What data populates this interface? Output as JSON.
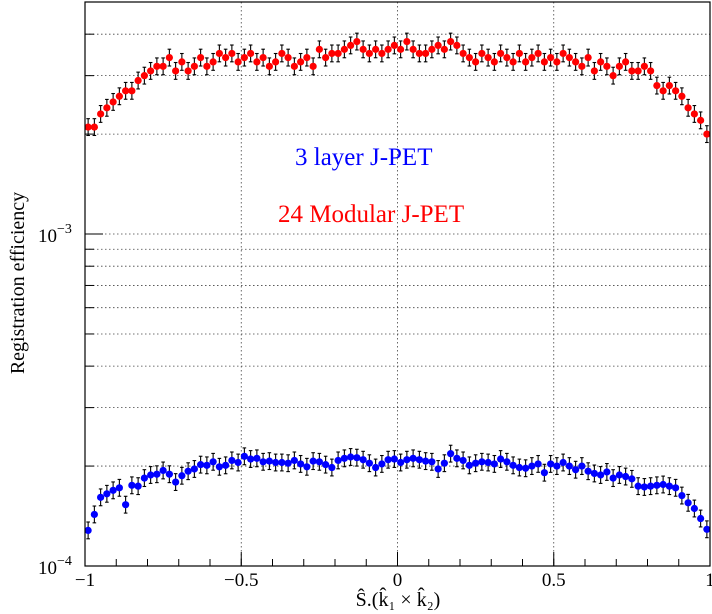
{
  "chart_data": {
    "type": "scatter",
    "title": "",
    "xlabel": "Ŝ.(k̂₁ × k̂₂)",
    "ylabel": "Registration efficiency",
    "xlim": [
      -1,
      1
    ],
    "ylim": [
      0.0001,
      0.005
    ],
    "log_y": true,
    "grid": true,
    "x_ticks": [
      {
        "value": -1,
        "label": "−1"
      },
      {
        "value": -0.5,
        "label": "−0.5"
      },
      {
        "value": 0,
        "label": "0"
      },
      {
        "value": 0.5,
        "label": "0.5"
      },
      {
        "value": 1,
        "label": "1"
      }
    ],
    "y_ticks": [
      {
        "value": 0.0001,
        "base": "10",
        "exp": "−4"
      },
      {
        "value": 0.001,
        "base": "10",
        "exp": "−3"
      }
    ],
    "annotations": [
      {
        "text": "3 layer J-PET",
        "color": "#0000ff"
      },
      {
        "text": "24 Modular J-PET",
        "color": "#ff0000"
      }
    ],
    "x": [
      -0.99,
      -0.97,
      -0.95,
      -0.93,
      -0.91,
      -0.89,
      -0.87,
      -0.85,
      -0.83,
      -0.81,
      -0.79,
      -0.77,
      -0.75,
      -0.73,
      -0.71,
      -0.69,
      -0.67,
      -0.65,
      -0.63,
      -0.61,
      -0.59,
      -0.57,
      -0.55,
      -0.53,
      -0.51,
      -0.49,
      -0.47,
      -0.45,
      -0.43,
      -0.41,
      -0.39,
      -0.37,
      -0.35,
      -0.33,
      -0.31,
      -0.29,
      -0.27,
      -0.25,
      -0.23,
      -0.21,
      -0.19,
      -0.17,
      -0.15,
      -0.13,
      -0.11,
      -0.09,
      -0.07,
      -0.05,
      -0.03,
      -0.01,
      0.01,
      0.03,
      0.05,
      0.07,
      0.09,
      0.11,
      0.13,
      0.15,
      0.17,
      0.19,
      0.21,
      0.23,
      0.25,
      0.27,
      0.29,
      0.31,
      0.33,
      0.35,
      0.37,
      0.39,
      0.41,
      0.43,
      0.45,
      0.47,
      0.49,
      0.51,
      0.53,
      0.55,
      0.57,
      0.59,
      0.61,
      0.63,
      0.65,
      0.67,
      0.69,
      0.71,
      0.73,
      0.75,
      0.77,
      0.79,
      0.81,
      0.83,
      0.85,
      0.87,
      0.89,
      0.91,
      0.93,
      0.95,
      0.97,
      0.99
    ],
    "series": [
      {
        "color": "#ff0000",
        "values": [
          0.0021,
          0.0021,
          0.0023,
          0.0024,
          0.0025,
          0.0026,
          0.0027,
          0.0027,
          0.0029,
          0.003,
          0.0031,
          0.0032,
          0.0032,
          0.0034,
          0.0031,
          0.0033,
          0.0031,
          0.0032,
          0.0034,
          0.0032,
          0.0033,
          0.0035,
          0.0034,
          0.0035,
          0.0033,
          0.0034,
          0.0035,
          0.0033,
          0.0034,
          0.0032,
          0.0033,
          0.0035,
          0.0034,
          0.0032,
          0.0033,
          0.0034,
          0.0032,
          0.0036,
          0.0034,
          0.0035,
          0.0035,
          0.0036,
          0.0037,
          0.0038,
          0.0036,
          0.0035,
          0.0036,
          0.0035,
          0.0036,
          0.0037,
          0.0036,
          0.0038,
          0.0036,
          0.0035,
          0.0035,
          0.0036,
          0.0037,
          0.0036,
          0.0038,
          0.0037,
          0.0035,
          0.0034,
          0.0033,
          0.0035,
          0.0034,
          0.0033,
          0.0035,
          0.0034,
          0.0033,
          0.0035,
          0.0033,
          0.0034,
          0.0035,
          0.0033,
          0.0034,
          0.0033,
          0.0035,
          0.0034,
          0.0033,
          0.0032,
          0.0034,
          0.0031,
          0.0033,
          0.0032,
          0.003,
          0.0032,
          0.0033,
          0.0031,
          0.0031,
          0.0032,
          0.0031,
          0.0028,
          0.0027,
          0.0028,
          0.0027,
          0.0026,
          0.0024,
          0.0023,
          0.0022,
          0.002
        ]
      },
      {
        "color": "#0000ff",
        "values": [
          0.000128,
          0.000143,
          0.000161,
          0.000165,
          0.000169,
          0.000172,
          0.000153,
          0.000175,
          0.000174,
          0.000184,
          0.000188,
          0.000189,
          0.000194,
          0.000189,
          0.000179,
          0.000187,
          0.000193,
          0.000196,
          0.000202,
          0.000201,
          0.000206,
          0.000199,
          0.000201,
          0.000208,
          0.000205,
          0.000214,
          0.00021,
          0.000211,
          0.000206,
          0.000207,
          0.000205,
          0.000205,
          0.000204,
          0.000208,
          0.000203,
          0.000199,
          0.000207,
          0.000206,
          0.000202,
          0.000198,
          0.000208,
          0.000211,
          0.000213,
          0.000212,
          0.000209,
          0.000204,
          0.000198,
          0.000203,
          0.000209,
          0.00021,
          0.000205,
          0.000209,
          0.000211,
          0.000209,
          0.000207,
          0.000206,
          0.000196,
          0.000204,
          0.000218,
          0.000211,
          0.000208,
          0.000201,
          0.000204,
          0.000206,
          0.000205,
          0.000203,
          0.00021,
          0.000206,
          0.000201,
          0.000198,
          0.000197,
          0.0002,
          0.000203,
          0.000191,
          0.000203,
          0.0002,
          0.000205,
          0.0002,
          0.000195,
          0.0002,
          0.000193,
          0.00019,
          0.000188,
          0.000192,
          0.000184,
          0.000188,
          0.000186,
          0.000183,
          0.000174,
          0.000173,
          0.000174,
          0.000175,
          0.000176,
          0.000174,
          0.000172,
          0.000163,
          0.000155,
          0.000149,
          0.000139,
          0.000129
        ]
      }
    ]
  }
}
